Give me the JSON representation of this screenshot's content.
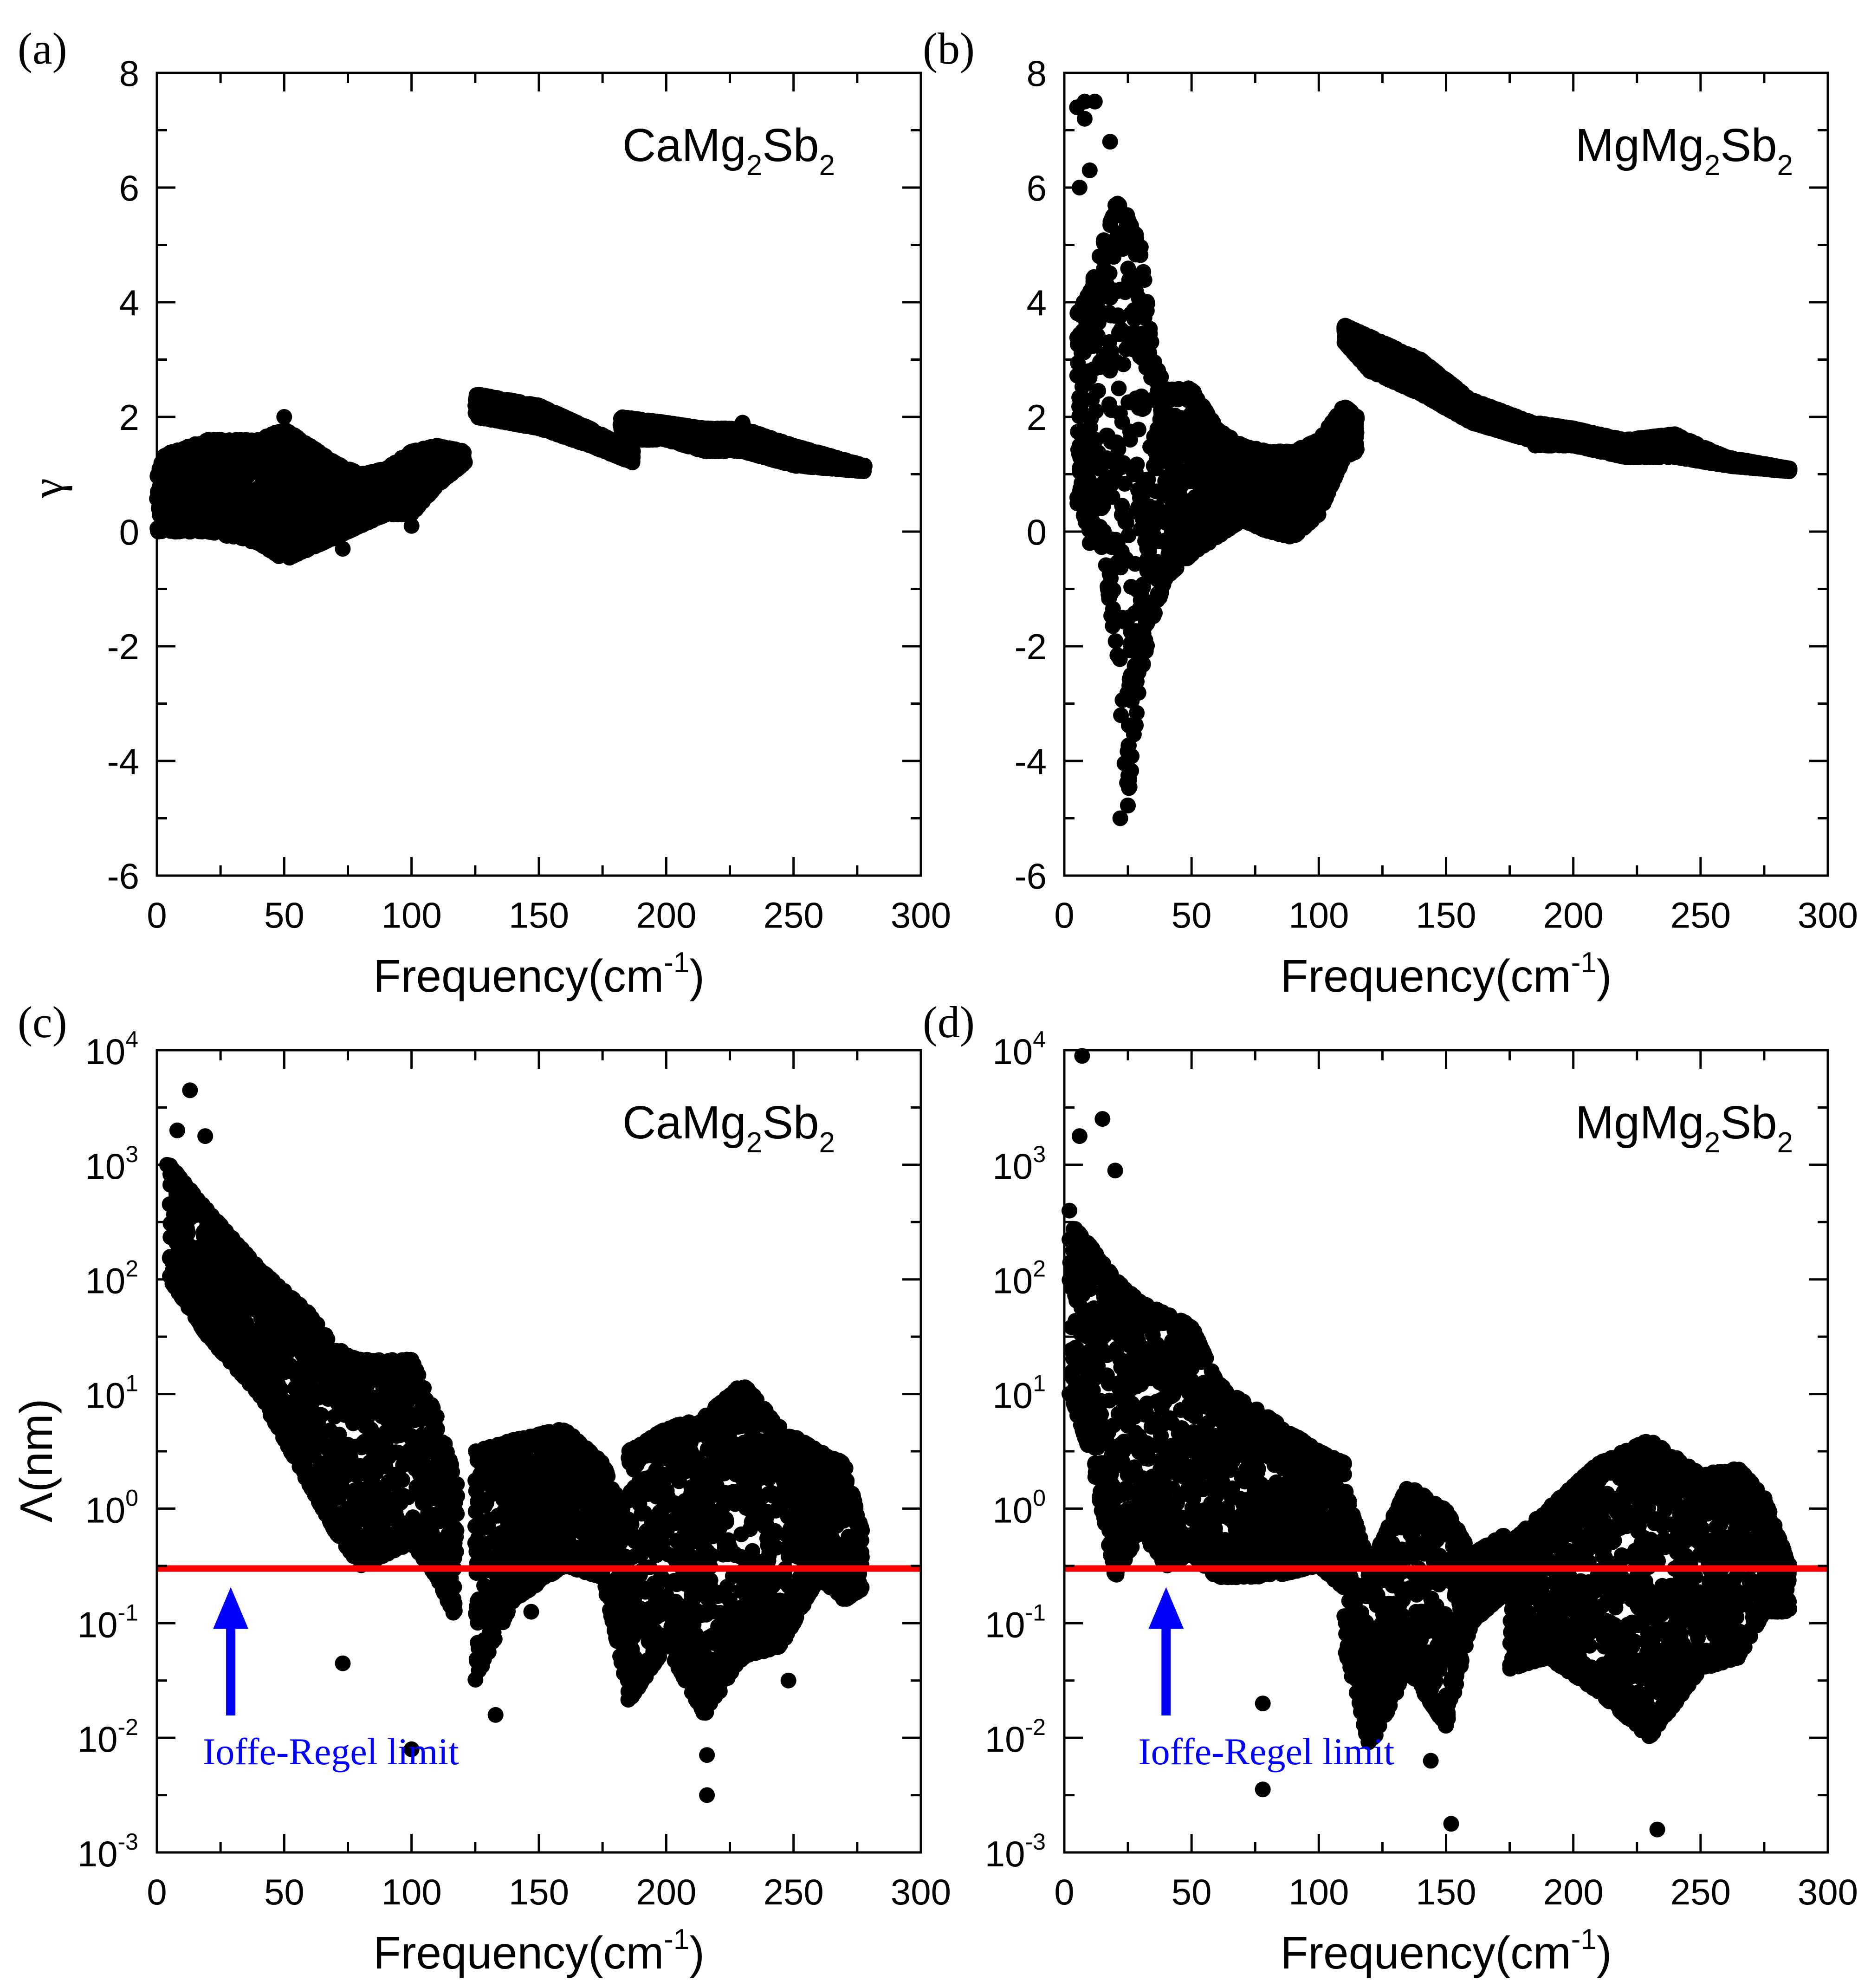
{
  "figure": {
    "panels": [
      {
        "tag": "(a)",
        "compound": {
          "base": "CaMg",
          "sub1": "2",
          "mid": "Sb",
          "sub2": "2"
        }
      },
      {
        "tag": "(b)",
        "compound": {
          "base": "MgMg",
          "sub1": "2",
          "mid": "Sb",
          "sub2": "2"
        }
      },
      {
        "tag": "(c)",
        "compound": {
          "base": "CaMg",
          "sub1": "2",
          "mid": "Sb",
          "sub2": "2"
        },
        "annotation": "Ioffe-Regel limit"
      },
      {
        "tag": "(d)",
        "compound": {
          "base": "MgMg",
          "sub1": "2",
          "mid": "Sb",
          "sub2": "2"
        },
        "annotation": "Ioffe-Regel limit"
      }
    ],
    "xlabel": {
      "text": "Frequency(cm",
      "sup": "-1",
      "close": ")"
    },
    "ylabel_gamma": "γ",
    "ylabel_lambda": "Λ(nm)",
    "log_ticks": [
      {
        "base": "10",
        "exp": "4"
      },
      {
        "base": "10",
        "exp": "3"
      },
      {
        "base": "10",
        "exp": "2"
      },
      {
        "base": "10",
        "exp": "1"
      },
      {
        "base": "10",
        "exp": "0"
      },
      {
        "base": "10",
        "exp": "-1"
      },
      {
        "base": "10",
        "exp": "-2"
      },
      {
        "base": "10",
        "exp": "-3"
      }
    ],
    "colors": {
      "points": "#000000",
      "limit_line": "#ff0000",
      "arrow": "#0000ff",
      "annotation": "#0000ff"
    }
  },
  "chart_data": [
    {
      "panel": "a",
      "type": "scatter",
      "title": "CaMg2Sb2",
      "xlabel": "Frequency(cm-1)",
      "ylabel": "γ",
      "xlim": [
        0,
        300
      ],
      "ylim": [
        -6,
        8
      ],
      "xticks": [
        0,
        50,
        100,
        150,
        200,
        250,
        300
      ],
      "yticks": [
        -6,
        -4,
        -2,
        0,
        2,
        4,
        6,
        8
      ],
      "bands": [
        {
          "x": [
            0,
            20,
            40,
            50,
            60,
            70,
            80,
            90,
            100,
            110,
            121
          ],
          "upper": [
            1.3,
            1.6,
            1.6,
            1.8,
            1.5,
            1.2,
            1.0,
            1.1,
            1.4,
            1.5,
            1.4
          ],
          "lower": [
            0.0,
            0.0,
            -0.2,
            -0.5,
            -0.3,
            -0.1,
            0.1,
            0.3,
            0.3,
            0.8,
            1.2
          ]
        },
        {
          "x": [
            125,
            150,
            170,
            187
          ],
          "upper": [
            2.4,
            2.2,
            1.8,
            1.4
          ],
          "lower": [
            2.0,
            1.8,
            1.5,
            1.2
          ]
        },
        {
          "x": [
            182,
            200,
            215,
            230,
            250,
            278
          ],
          "upper": [
            2.0,
            1.9,
            1.8,
            1.8,
            1.5,
            1.15
          ],
          "lower": [
            1.6,
            1.6,
            1.4,
            1.4,
            1.15,
            1.05
          ]
        }
      ],
      "outliers": [
        [
          3,
          1.2
        ],
        [
          10,
          0.5
        ],
        [
          50,
          2.0
        ],
        [
          73,
          -0.3
        ],
        [
          100,
          0.1
        ],
        [
          230,
          1.9
        ]
      ]
    },
    {
      "panel": "b",
      "type": "scatter",
      "title": "MgMg2Sb2",
      "xlabel": "Frequency(cm-1)",
      "ylabel": "",
      "xlim": [
        0,
        300
      ],
      "ylim": [
        -6,
        8
      ],
      "xticks": [
        0,
        50,
        100,
        150,
        200,
        250,
        300
      ],
      "yticks": [
        -6,
        -4,
        -2,
        0,
        2,
        4,
        6,
        8
      ],
      "bands": [
        {
          "x": [
            5,
            10,
            15,
            20,
            25,
            30,
            35,
            40,
            50,
            60,
            70,
            80,
            90,
            100,
            110,
            115
          ],
          "upper": [
            3.8,
            4.2,
            5.0,
            5.8,
            5.5,
            5.0,
            3.0,
            2.5,
            2.5,
            1.8,
            1.5,
            1.4,
            1.4,
            1.6,
            2.2,
            2.0
          ],
          "lower": [
            0.5,
            0.0,
            -0.3,
            -2.0,
            -4.8,
            -2.5,
            -1.5,
            -0.8,
            -0.4,
            -0.1,
            0.2,
            0.0,
            -0.1,
            0.3,
            1.3,
            1.4
          ]
        },
        {
          "x": [
            110,
            120,
            140,
            160,
            190
          ],
          "upper": [
            3.6,
            3.4,
            3.0,
            2.3,
            1.8
          ],
          "lower": [
            3.3,
            2.8,
            2.4,
            1.9,
            1.5
          ]
        },
        {
          "x": [
            185,
            200,
            220,
            240,
            260,
            285
          ],
          "upper": [
            1.9,
            1.8,
            1.6,
            1.7,
            1.3,
            1.1
          ],
          "lower": [
            1.5,
            1.5,
            1.3,
            1.3,
            1.15,
            1.05
          ]
        }
      ],
      "outliers": [
        [
          5,
          7.4
        ],
        [
          8,
          7.5
        ],
        [
          12,
          7.5
        ],
        [
          8,
          7.2
        ],
        [
          10,
          6.3
        ],
        [
          18,
          6.8
        ],
        [
          6,
          6.0
        ],
        [
          22,
          -5.0
        ],
        [
          10,
          -0.2
        ],
        [
          6,
          1.5
        ]
      ]
    },
    {
      "panel": "c",
      "type": "scatter",
      "title": "CaMg2Sb2",
      "xlabel": "Frequency(cm-1)",
      "ylabel": "Λ(nm)",
      "yscale": "log",
      "xlim": [
        0,
        300
      ],
      "ylim_log10": [
        -3,
        4
      ],
      "xticks": [
        0,
        50,
        100,
        150,
        200,
        250,
        300
      ],
      "ioffe_regel_limit_nm": 0.3,
      "arrow_x": 29,
      "bands": [
        {
          "x": [
            5,
            20,
            40,
            60,
            70,
            80,
            100,
            110,
            118
          ],
          "upper_log": [
            3.0,
            2.6,
            2.1,
            1.7,
            1.4,
            1.3,
            1.3,
            0.8,
            0.2
          ],
          "lower_log": [
            2.0,
            1.5,
            1.0,
            0.2,
            -0.2,
            -0.5,
            -0.3,
            -0.6,
            -1.0
          ]
        },
        {
          "x": [
            125,
            140,
            160,
            175,
            185
          ],
          "upper_log": [
            0.5,
            0.6,
            0.7,
            0.4,
            -0.1
          ],
          "lower_log": [
            -1.5,
            -0.8,
            -0.5,
            -0.6,
            -1.6
          ]
        },
        {
          "x": [
            185,
            200,
            215,
            230,
            245,
            260,
            270,
            277
          ],
          "upper_log": [
            0.5,
            0.7,
            0.8,
            1.1,
            0.7,
            0.5,
            0.4,
            -0.2
          ],
          "lower_log": [
            -1.7,
            -1.2,
            -1.8,
            -1.3,
            -1.2,
            -0.6,
            -0.8,
            -0.7
          ]
        }
      ],
      "outliers_log": [
        [
          13,
          3.65
        ],
        [
          8,
          3.3
        ],
        [
          19,
          3.25
        ],
        [
          4,
          3.0
        ],
        [
          100,
          -2.1
        ],
        [
          216,
          -2.15
        ],
        [
          216,
          -2.5
        ],
        [
          73,
          -1.35
        ],
        [
          125,
          -0.3
        ],
        [
          133,
          -1.8
        ],
        [
          147,
          -0.9
        ],
        [
          248,
          -1.5
        ]
      ]
    },
    {
      "panel": "d",
      "type": "scatter",
      "title": "MgMg2Sb2",
      "xlabel": "Frequency(cm-1)",
      "ylabel": "",
      "yscale": "log",
      "xlim": [
        0,
        300
      ],
      "ylim_log10": [
        -3,
        4
      ],
      "xticks": [
        0,
        50,
        100,
        150,
        200,
        250,
        300
      ],
      "ioffe_regel_limit_nm": 0.3,
      "arrow_x": 40,
      "bands": [
        {
          "x": [
            2,
            10,
            20,
            30,
            40,
            50,
            60,
            80,
            100,
            110
          ],
          "upper_log": [
            2.5,
            2.3,
            2.0,
            1.8,
            1.7,
            1.6,
            1.1,
            0.8,
            0.5,
            0.4
          ],
          "lower_log": [
            1.0,
            0.5,
            -0.6,
            -0.2,
            -0.5,
            -0.4,
            -0.6,
            -0.6,
            -0.5,
            -0.7
          ]
        },
        {
          "x": [
            110,
            120,
            135,
            150,
            160,
            175
          ],
          "upper_log": [
            0.2,
            -0.5,
            0.2,
            0.0,
            -0.4,
            -0.2
          ],
          "lower_log": [
            -1.2,
            -2.1,
            -1.4,
            -1.9,
            -1.0,
            -0.7
          ]
        },
        {
          "x": [
            175,
            190,
            210,
            230,
            250,
            265,
            275,
            285
          ],
          "upper_log": [
            -0.3,
            0.0,
            0.4,
            0.6,
            0.3,
            0.35,
            0.1,
            -0.5
          ],
          "lower_log": [
            -1.4,
            -1.3,
            -1.6,
            -2.0,
            -1.4,
            -1.3,
            -0.9,
            -0.9
          ]
        }
      ],
      "outliers_log": [
        [
          7,
          3.95
        ],
        [
          15,
          3.4
        ],
        [
          6,
          3.25
        ],
        [
          20,
          2.95
        ],
        [
          2,
          2.6
        ],
        [
          78,
          -2.45
        ],
        [
          152,
          -2.75
        ],
        [
          233,
          -2.8
        ],
        [
          78,
          -1.7
        ],
        [
          144,
          -2.2
        ]
      ]
    }
  ]
}
